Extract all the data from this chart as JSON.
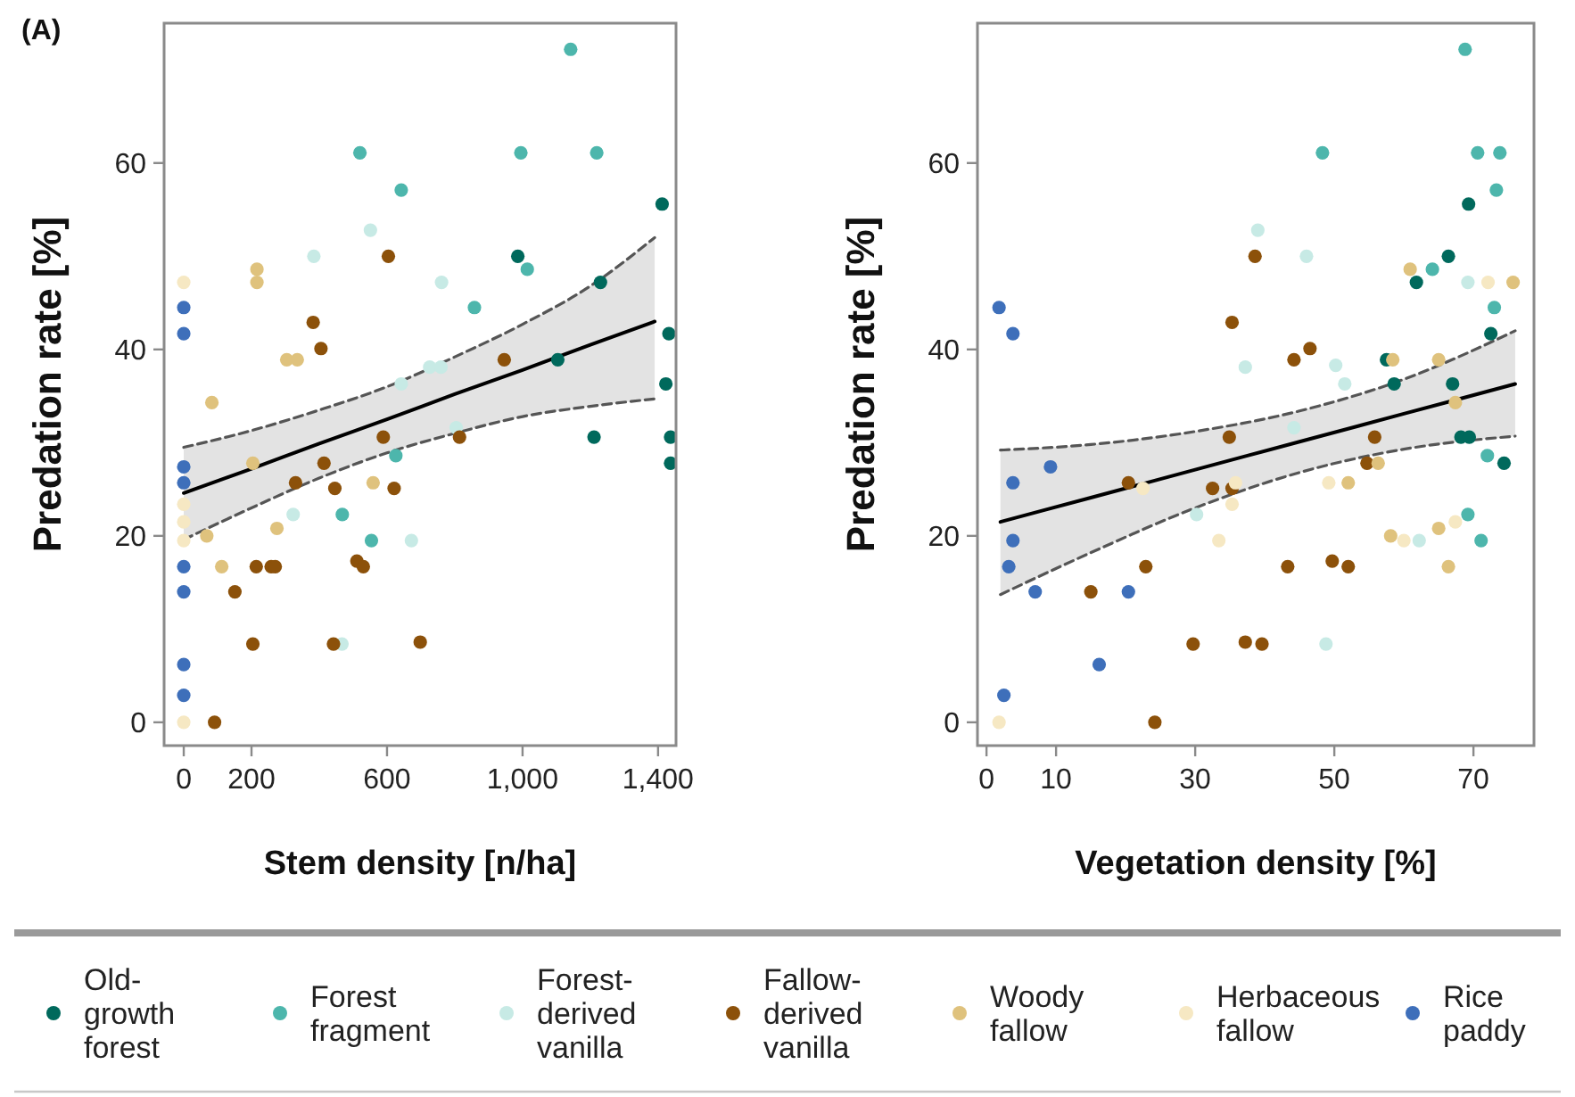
{
  "chart_data": [
    {
      "type": "scatter",
      "annotations": [
        "(A)"
      ],
      "xlabel": "Stem density [n/ha]",
      "ylabel": "Predation rate [%]",
      "xlim": [
        -58,
        1453
      ],
      "ylim": [
        -2.5,
        75
      ],
      "xticks": [
        0,
        200,
        600,
        {
          "value": 1000,
          "label": "1,000"
        },
        {
          "value": 1400,
          "label": "1,400"
        }
      ],
      "yticks": [
        0,
        20,
        40,
        60
      ],
      "marker": "circle",
      "legend": "bottom",
      "series": [
        {
          "name": "Old-growth forest",
          "color": "#00695c",
          "x": [
            1412,
            986,
            1230,
            1432,
            1104,
            1423,
            1211,
            1437,
            1437
          ],
          "values": [
            55.6,
            50.0,
            47.2,
            41.7,
            38.9,
            36.3,
            30.6,
            30.6,
            27.8
          ]
        },
        {
          "name": "Forest fragment",
          "color": "#4db6ac",
          "x": [
            1142,
            520,
            995,
            1219,
            642,
            1014,
            858,
            626,
            468,
            554
          ],
          "values": [
            72.2,
            61.1,
            61.1,
            61.1,
            57.1,
            48.6,
            44.5,
            28.6,
            22.3,
            19.5
          ]
        },
        {
          "name": "Forest-derived vanilla",
          "color": "#c7eae5",
          "x": [
            551,
            384,
            761,
            726,
            759,
            642,
            804,
            323,
            672,
            467
          ],
          "values": [
            52.8,
            50.0,
            47.2,
            38.1,
            38.1,
            36.3,
            31.6,
            22.3,
            19.5,
            8.4
          ]
        },
        {
          "name": "Fallow-derived vanilla",
          "color": "#8c510a",
          "x": [
            604,
            382,
            405,
            946,
            589,
            814,
            414,
            330,
            446,
            621,
            214,
            258,
            270,
            511,
            530,
            151,
            204,
            442,
            698,
            91
          ],
          "values": [
            50.0,
            42.9,
            40.1,
            38.9,
            30.6,
            30.6,
            27.8,
            25.7,
            25.1,
            25.1,
            16.7,
            16.7,
            16.7,
            17.3,
            16.7,
            14.0,
            8.4,
            8.4,
            8.6,
            0
          ]
        },
        {
          "name": "Woody fallow",
          "color": "#dfc27d",
          "x": [
            216,
            216,
            304,
            335,
            83,
            204,
            559,
            68,
            275,
            112
          ],
          "values": [
            48.6,
            47.2,
            38.9,
            38.9,
            34.3,
            27.8,
            25.7,
            20.0,
            20.8,
            16.7
          ]
        },
        {
          "name": "Herbaceous fallow",
          "color": "#f6e8c3",
          "x": [
            0,
            0,
            0,
            0,
            0
          ],
          "values": [
            47.2,
            23.4,
            21.5,
            19.5,
            0
          ]
        },
        {
          "name": "Rice paddy",
          "color": "#3e6fba",
          "x": [
            0,
            0,
            0,
            0,
            0,
            0,
            0,
            0
          ],
          "values": [
            44.5,
            41.7,
            27.4,
            25.7,
            16.7,
            14.0,
            6.2,
            2.9
          ]
        },
        {
          "type": "line",
          "color": "#000000",
          "line_style": "solid",
          "marker": "none",
          "x": [
            0,
            200,
            400,
            600,
            800,
            1000,
            1200,
            1390
          ],
          "values": [
            24.6,
            27.2,
            29.9,
            32.5,
            35.2,
            37.8,
            40.5,
            43.0
          ],
          "lower": [
            19.6,
            23.0,
            26.2,
            28.9,
            31.0,
            32.8,
            33.9,
            34.7
          ],
          "upper": [
            29.5,
            31.3,
            33.5,
            36.0,
            39.2,
            42.7,
            46.8,
            52.0
          ]
        },
        {
          "type": "line",
          "color": "#555555",
          "line_style": "dashed",
          "marker": "none",
          "x": [
            0,
            200,
            400,
            600,
            800,
            1000,
            1200,
            1390
          ],
          "values": [
            19.6,
            23.0,
            26.2,
            28.9,
            31.0,
            32.8,
            33.9,
            34.7
          ]
        },
        {
          "type": "line",
          "color": "#555555",
          "line_style": "dashed",
          "marker": "none",
          "x": [
            0,
            200,
            400,
            600,
            800,
            1000,
            1200,
            1390
          ],
          "values": [
            29.5,
            31.3,
            33.5,
            36.0,
            39.2,
            42.7,
            46.8,
            52.0
          ]
        }
      ]
    },
    {
      "type": "scatter",
      "xlabel": "Vegetation density [%]",
      "ylabel": "Predation rate [%]",
      "xlim": [
        -1.3,
        78.7
      ],
      "ylim": [
        -2.5,
        75
      ],
      "xticks": [
        0,
        10,
        30,
        50,
        70
      ],
      "yticks": [
        0,
        20,
        40,
        60
      ],
      "marker": "circle",
      "series": [
        {
          "color": "#00695c",
          "x": [
            69.3,
            66.4,
            61.8,
            72.5,
            57.5,
            58.6,
            67.0,
            68.2,
            69.4,
            74.4
          ],
          "values": [
            55.6,
            50.0,
            47.2,
            41.7,
            38.9,
            36.3,
            36.3,
            30.6,
            30.6,
            27.8
          ]
        },
        {
          "color": "#4db6ac",
          "x": [
            68.8,
            48.3,
            70.6,
            73.8,
            73.3,
            64.1,
            73.0,
            72.0,
            69.2,
            71.1
          ],
          "values": [
            72.2,
            61.1,
            61.1,
            61.1,
            57.1,
            48.6,
            44.5,
            28.6,
            22.3,
            19.5
          ]
        },
        {
          "color": "#c7eae5",
          "x": [
            39.0,
            46.0,
            69.2,
            37.2,
            50.2,
            51.5,
            44.2,
            30.2,
            62.2,
            48.8
          ],
          "values": [
            52.8,
            50.0,
            47.2,
            38.1,
            38.3,
            36.3,
            31.6,
            22.3,
            19.5,
            8.4
          ]
        },
        {
          "color": "#8c510a",
          "x": [
            38.6,
            35.3,
            44.2,
            46.5,
            34.9,
            55.8,
            54.7,
            20.4,
            32.5,
            35.3,
            22.9,
            43.3,
            49.7,
            52.0,
            15.0,
            29.7,
            37.2,
            39.6,
            24.2
          ],
          "values": [
            50.0,
            42.9,
            38.9,
            40.1,
            30.6,
            30.6,
            27.8,
            25.7,
            25.1,
            25.1,
            16.7,
            16.7,
            17.3,
            16.7,
            14.0,
            8.4,
            8.6,
            8.4,
            0
          ]
        },
        {
          "color": "#dfc27d",
          "x": [
            60.9,
            75.7,
            58.4,
            65.0,
            67.4,
            56.3,
            52.0,
            58.1,
            65.0,
            66.4
          ],
          "values": [
            48.6,
            47.2,
            38.9,
            38.9,
            34.3,
            27.8,
            25.7,
            20.0,
            20.8,
            16.7
          ]
        },
        {
          "color": "#f6e8c3",
          "x": [
            72.1,
            22.5,
            35.8,
            49.2,
            35.3,
            33.4,
            60.0,
            67.4,
            1.8
          ],
          "values": [
            47.2,
            25.1,
            25.7,
            25.7,
            23.4,
            19.5,
            19.5,
            21.5,
            0
          ]
        },
        {
          "color": "#3e6fba",
          "x": [
            1.8,
            3.8,
            9.2,
            3.8,
            3.8,
            3.2,
            7.0,
            20.4,
            16.2,
            2.5
          ],
          "values": [
            44.5,
            41.7,
            27.4,
            25.7,
            19.5,
            16.7,
            14.0,
            14.0,
            6.2,
            2.9
          ]
        },
        {
          "type": "line",
          "color": "#000000",
          "line_style": "solid",
          "marker": "none",
          "x": [
            2,
            15,
            30,
            45,
            60,
            76
          ],
          "values": [
            21.5,
            24.1,
            27.1,
            30.1,
            33.1,
            36.3
          ],
          "lower": [
            13.7,
            18.2,
            23.0,
            26.8,
            29.3,
            30.7
          ],
          "upper": [
            29.2,
            29.8,
            31.2,
            33.4,
            36.8,
            42.0
          ]
        },
        {
          "type": "line",
          "color": "#555555",
          "line_style": "dashed",
          "marker": "none",
          "x": [
            2,
            15,
            30,
            45,
            60,
            76
          ],
          "values": [
            13.7,
            18.2,
            23.0,
            26.8,
            29.3,
            30.7
          ]
        },
        {
          "type": "line",
          "color": "#555555",
          "line_style": "dashed",
          "marker": "none",
          "x": [
            2,
            15,
            30,
            45,
            60,
            76
          ],
          "values": [
            29.2,
            29.8,
            31.2,
            33.4,
            36.8,
            42.0
          ]
        }
      ]
    }
  ]
}
